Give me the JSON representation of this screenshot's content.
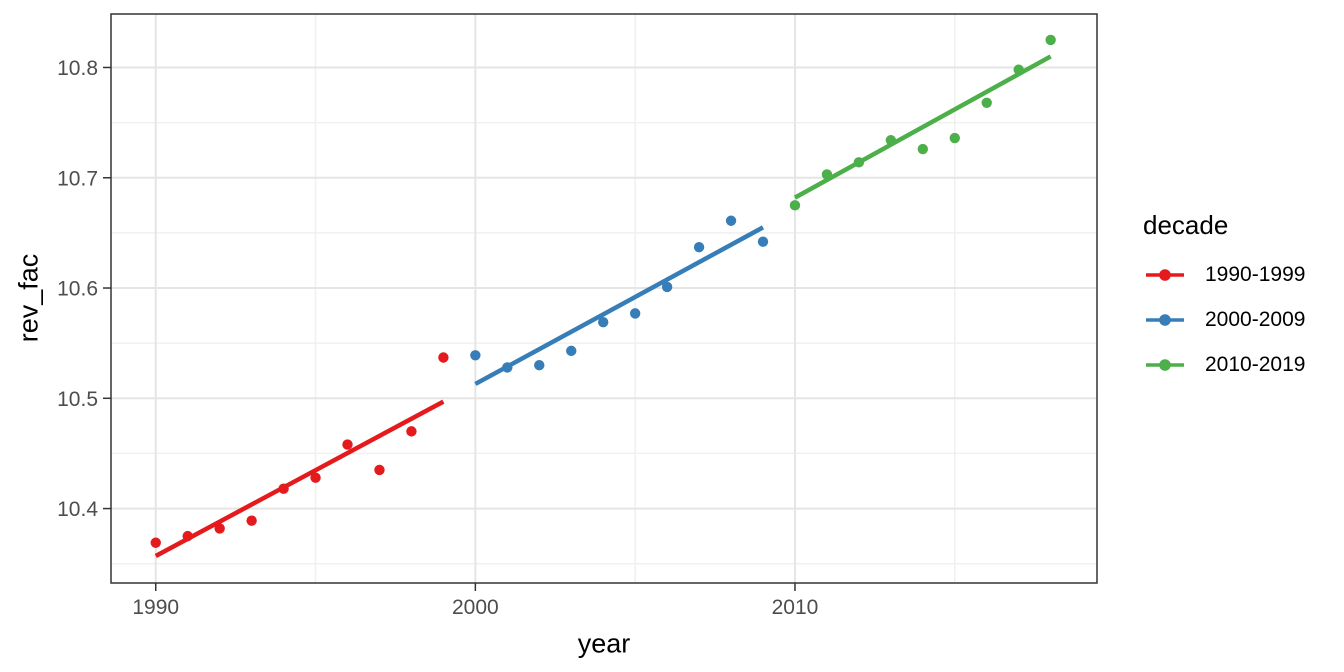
{
  "chart_data": {
    "type": "scatter",
    "title": "",
    "xlabel": "year",
    "ylabel": "rev_fac",
    "x_ticks": [
      1990,
      2000,
      2010
    ],
    "y_ticks": [
      10.4,
      10.5,
      10.6,
      10.7,
      10.8
    ],
    "xlim": [
      1988.6,
      2019.45
    ],
    "ylim": [
      10.3325,
      10.8485
    ],
    "grid": true,
    "panel_theme": {
      "background": "#ffffff",
      "border_color": "#333333",
      "grid_major_color": "#e5e5e5",
      "grid_minor_color": "#f0f0f0",
      "tick_color": "#333333",
      "tick_label_color": "#4d4d4d"
    },
    "legend": {
      "title": "decade",
      "position": "right",
      "entries": [
        "1990-1999",
        "2000-2009",
        "2010-2019"
      ]
    },
    "series": [
      {
        "name": "1990-1999",
        "color": "#E41A1C",
        "x": [
          1990,
          1991,
          1992,
          1993,
          1994,
          1995,
          1996,
          1997,
          1998,
          1999
        ],
        "y": [
          10.369,
          10.375,
          10.382,
          10.389,
          10.418,
          10.428,
          10.458,
          10.435,
          10.47,
          10.537
        ],
        "trend": {
          "x1": 1990,
          "y1": 10.357,
          "x2": 1999,
          "y2": 10.497
        }
      },
      {
        "name": "2000-2009",
        "color": "#377EB8",
        "x": [
          2000,
          2001,
          2002,
          2003,
          2004,
          2005,
          2006,
          2007,
          2008,
          2009
        ],
        "y": [
          10.539,
          10.528,
          10.53,
          10.543,
          10.569,
          10.577,
          10.601,
          10.637,
          10.661,
          10.642
        ],
        "trend": {
          "x1": 2000,
          "y1": 10.513,
          "x2": 2009,
          "y2": 10.655
        }
      },
      {
        "name": "2010-2019",
        "color": "#4DAF4A",
        "x": [
          2010,
          2011,
          2012,
          2013,
          2014,
          2015,
          2016,
          2017,
          2018
        ],
        "y": [
          10.675,
          10.703,
          10.714,
          10.734,
          10.726,
          10.736,
          10.768,
          10.798,
          10.825
        ],
        "trend": {
          "x1": 2010,
          "y1": 10.682,
          "x2": 2018,
          "y2": 10.81
        }
      }
    ]
  }
}
